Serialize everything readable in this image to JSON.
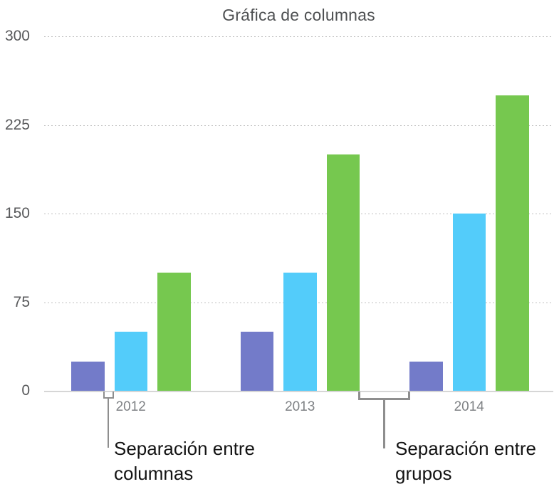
{
  "chart_data": {
    "type": "bar",
    "title": "Gráfica de columnas",
    "categories": [
      "2012",
      "2013",
      "2014"
    ],
    "series": [
      {
        "name": "purple",
        "color": "#737BC9",
        "values": [
          25,
          50,
          25
        ]
      },
      {
        "name": "blue",
        "color": "#53CCFA",
        "values": [
          50,
          100,
          150
        ]
      },
      {
        "name": "green",
        "color": "#76C84F",
        "values": [
          100,
          200,
          250
        ]
      }
    ],
    "yticks": [
      300,
      225,
      150,
      75,
      0
    ],
    "ylim": [
      0,
      300
    ],
    "grid": "horizontal-dotted",
    "legend": "none"
  },
  "annotations": {
    "column_gap": "Separación entre columnas",
    "group_gap": "Separación entre grupos"
  },
  "colors": {
    "axis_line": "#d6d6d6",
    "gridline": "#bfbfbf",
    "callout_line": "#8e8e8e",
    "title_text": "#4e5052",
    "ytick_text": "#58595b",
    "xtick_text": "#7f8285",
    "callout_text": "#141414"
  }
}
